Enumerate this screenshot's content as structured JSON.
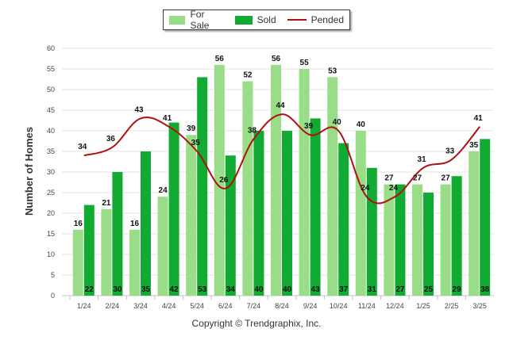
{
  "chart_data": {
    "type": "bar",
    "ylabel": "Number of Homes",
    "xlabel": "",
    "ylim": [
      0,
      60
    ],
    "yticks": [
      0,
      5,
      10,
      15,
      20,
      25,
      30,
      35,
      40,
      45,
      50,
      55,
      60
    ],
    "grid": true,
    "legend_position": "top-center",
    "categories": [
      "1/24",
      "2/24",
      "3/24",
      "4/24",
      "5/24",
      "6/24",
      "7/24",
      "8/24",
      "9/24",
      "10/24",
      "11/24",
      "12/24",
      "1/25",
      "2/25",
      "3/25"
    ],
    "series": [
      {
        "name": "For Sale",
        "kind": "bar",
        "color": "#99dd88",
        "values": [
          16,
          21,
          16,
          24,
          39,
          56,
          52,
          56,
          55,
          53,
          40,
          27,
          27,
          27,
          35
        ]
      },
      {
        "name": "Sold",
        "kind": "bar",
        "color": "#11aa33",
        "values": [
          22,
          30,
          35,
          42,
          53,
          34,
          40,
          40,
          43,
          37,
          31,
          27,
          25,
          29,
          38
        ]
      },
      {
        "name": "Pended",
        "kind": "line",
        "color": "#b01010",
        "values": [
          34,
          36,
          43,
          41,
          35,
          26,
          38,
          44,
          39,
          40,
          24,
          24,
          31,
          33,
          41
        ]
      }
    ]
  },
  "footer": {
    "copyright": "Copyright © Trendgraphix, Inc."
  }
}
